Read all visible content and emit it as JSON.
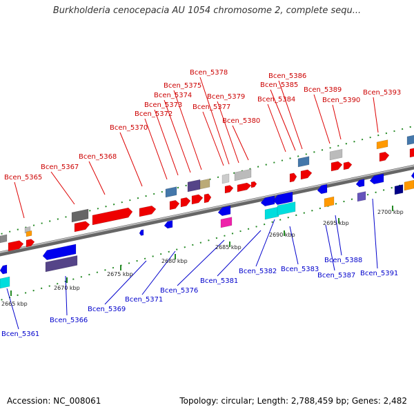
{
  "title": "Burkholderia cenocepacia AU 1054 chromosome 2, complete sequ...",
  "footer": {
    "accession": "Accession: NC_008061",
    "stats": "Topology: circular; Length: 2,788,459 bp; Genes: 2,482"
  },
  "scale_labels": [
    "2665 kbp",
    "2670 kbp",
    "2675 kbp",
    "2680 kbp",
    "2685 kbp",
    "2690 kbp",
    "2695 kbp",
    "2700 kbp"
  ],
  "colors": {
    "forward_label": "#cc0000",
    "reverse_label": "#0000cc",
    "backbone": "#888888",
    "tick": "#228822"
  },
  "labels": {
    "top": [
      "Bcen_5365",
      "Bcen_5367",
      "Bcen_5368",
      "Bcen_5370",
      "Bcen_5372",
      "Bcen_5373",
      "Bcen_5374",
      "Bcen_5375",
      "Bcen_5377",
      "Bcen_5378",
      "Bcen_5379",
      "Bcen_5380",
      "Bcen_5384",
      "Bcen_5385",
      "Bcen_5386",
      "Bcen_5389",
      "Bcen_5390",
      "Bcen_5393"
    ],
    "bottom": [
      "Bcen_5361",
      "Bcen_5366",
      "Bcen_5369",
      "Bcen_5371",
      "Bcen_5376",
      "Bcen_5381",
      "Bcen_5382",
      "Bcen_5383",
      "Bcen_5387",
      "Bcen_5388",
      "Bcen_5391"
    ]
  }
}
